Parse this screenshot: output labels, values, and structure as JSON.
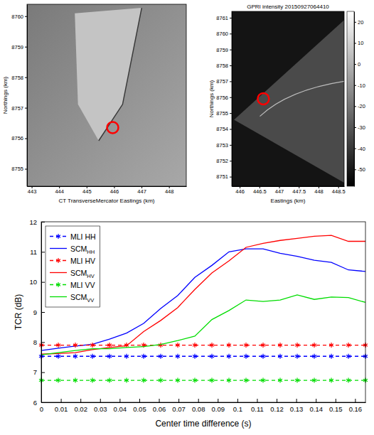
{
  "chart_data": [
    {
      "type": "image",
      "x_label": "CT TransverseMercator Eastings (km)",
      "y_label": "Northings (km)",
      "xlim": [
        442.83,
        448.63
      ],
      "ylim": [
        8754.43,
        8760.39
      ],
      "xticks": [
        443,
        444,
        445,
        446,
        447,
        448
      ],
      "yticks": [
        8755,
        8756,
        8757,
        8758,
        8759,
        8760
      ],
      "highlight": {
        "x": 445.95,
        "y": 8756.35
      }
    },
    {
      "type": "image",
      "title": "GPRI intensity 20150927064410",
      "x_label": "Eastings (km)",
      "y_label": "Northings (km)",
      "xlim": [
        445.8,
        448.65
      ],
      "ylim": [
        8750.4,
        8761.4
      ],
      "xticks": [
        446,
        446.5,
        447,
        447.5,
        448,
        448.5
      ],
      "yticks": [
        8751,
        8752,
        8753,
        8754,
        8755,
        8756,
        8757,
        8758,
        8759,
        8760,
        8761
      ],
      "highlight": {
        "x": 446.6,
        "y": 8755.9
      },
      "colorbar": {
        "range": [
          -58,
          25
        ],
        "ticks": [
          20,
          10,
          0,
          -10,
          -20,
          -30,
          -40,
          -50
        ]
      }
    },
    {
      "type": "line",
      "x_label": "Center time difference (s)",
      "y_label": "TCR (dB)",
      "x": [
        0,
        0.0087,
        0.0174,
        0.0261,
        0.0348,
        0.0435,
        0.0522,
        0.0609,
        0.0696,
        0.0783,
        0.087,
        0.0957,
        0.1044,
        0.1131,
        0.1218,
        0.1305,
        0.1392,
        0.1479,
        0.1566,
        0.1653
      ],
      "xlim": [
        0,
        0.1653
      ],
      "xticks": [
        0,
        0.01,
        0.02,
        0.03,
        0.04,
        0.05,
        0.06,
        0.07,
        0.08,
        0.09,
        0.1,
        0.11,
        0.12,
        0.13,
        0.14,
        0.15,
        0.16
      ],
      "ylim": [
        6,
        12
      ],
      "yticks": [
        6,
        7,
        8,
        9,
        10,
        11,
        12
      ],
      "legend": "top-left",
      "series": [
        {
          "name": "MLI HH",
          "color": "#0000ff",
          "marker": "asterisk",
          "line_style": "dashed",
          "values": [
            7.53,
            7.53,
            7.53,
            7.53,
            7.53,
            7.53,
            7.53,
            7.53,
            7.53,
            7.53,
            7.53,
            7.53,
            7.53,
            7.53,
            7.53,
            7.53,
            7.53,
            7.53,
            7.53,
            7.53
          ]
        },
        {
          "name": "SCMHH",
          "color": "#0000ff",
          "marker": "none",
          "line_style": "solid",
          "values": [
            7.72,
            7.8,
            7.87,
            7.93,
            8.1,
            8.3,
            8.62,
            9.12,
            9.55,
            10.15,
            10.55,
            11.0,
            11.1,
            11.1,
            10.95,
            10.85,
            10.72,
            10.65,
            10.4,
            10.35
          ]
        },
        {
          "name": "MLI HV",
          "color": "#ff0000",
          "marker": "asterisk",
          "line_style": "dashed",
          "values": [
            7.9,
            7.9,
            7.9,
            7.9,
            7.9,
            7.9,
            7.9,
            7.9,
            7.9,
            7.9,
            7.9,
            7.9,
            7.9,
            7.9,
            7.9,
            7.9,
            7.9,
            7.9,
            7.9,
            7.9
          ]
        },
        {
          "name": "SCMHV",
          "color": "#ff0000",
          "marker": "none",
          "line_style": "solid",
          "values": [
            7.6,
            7.62,
            7.65,
            7.75,
            7.82,
            7.88,
            8.35,
            8.72,
            9.15,
            9.75,
            10.3,
            10.7,
            11.15,
            11.28,
            11.38,
            11.45,
            11.52,
            11.55,
            11.35,
            11.35
          ]
        },
        {
          "name": "MLI VV",
          "color": "#00dd00",
          "marker": "asterisk",
          "line_style": "dashed",
          "values": [
            6.73,
            6.73,
            6.73,
            6.73,
            6.73,
            6.73,
            6.73,
            6.73,
            6.73,
            6.73,
            6.73,
            6.73,
            6.73,
            6.73,
            6.73,
            6.73,
            6.73,
            6.73,
            6.73,
            6.73
          ]
        },
        {
          "name": "SCMVV",
          "color": "#00dd00",
          "marker": "none",
          "line_style": "solid",
          "values": [
            7.58,
            7.65,
            7.72,
            7.78,
            7.78,
            7.82,
            7.85,
            7.92,
            8.05,
            8.2,
            8.75,
            9.05,
            9.4,
            9.35,
            9.4,
            9.57,
            9.42,
            9.5,
            9.48,
            9.32
          ]
        }
      ]
    }
  ]
}
